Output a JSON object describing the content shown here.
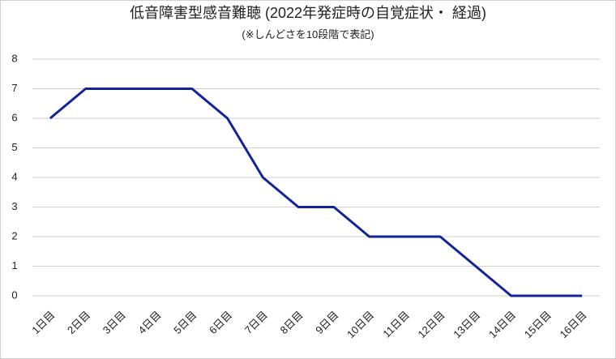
{
  "chart_data": {
    "type": "line",
    "title": "低音障害型感音難聴 (2022年発症時の自覚症状・ 経過)",
    "subtitle": "(※しんどさを10段階で表記)",
    "categories": [
      "1日目",
      "2日目",
      "3日目",
      "4日目",
      "5日目",
      "6日目",
      "7日目",
      "8日目",
      "9日目",
      "10日目",
      "11日目",
      "12日目",
      "13日目",
      "14日目",
      "15日目",
      "16日目"
    ],
    "values": [
      6,
      7,
      7,
      7,
      7,
      6,
      4,
      3,
      3,
      2,
      2,
      2,
      1,
      0,
      0,
      0
    ],
    "color": "#13239a",
    "ylim": [
      0,
      8
    ],
    "yticks": [
      0,
      1,
      2,
      3,
      4,
      5,
      6,
      7,
      8
    ],
    "grid": true
  }
}
